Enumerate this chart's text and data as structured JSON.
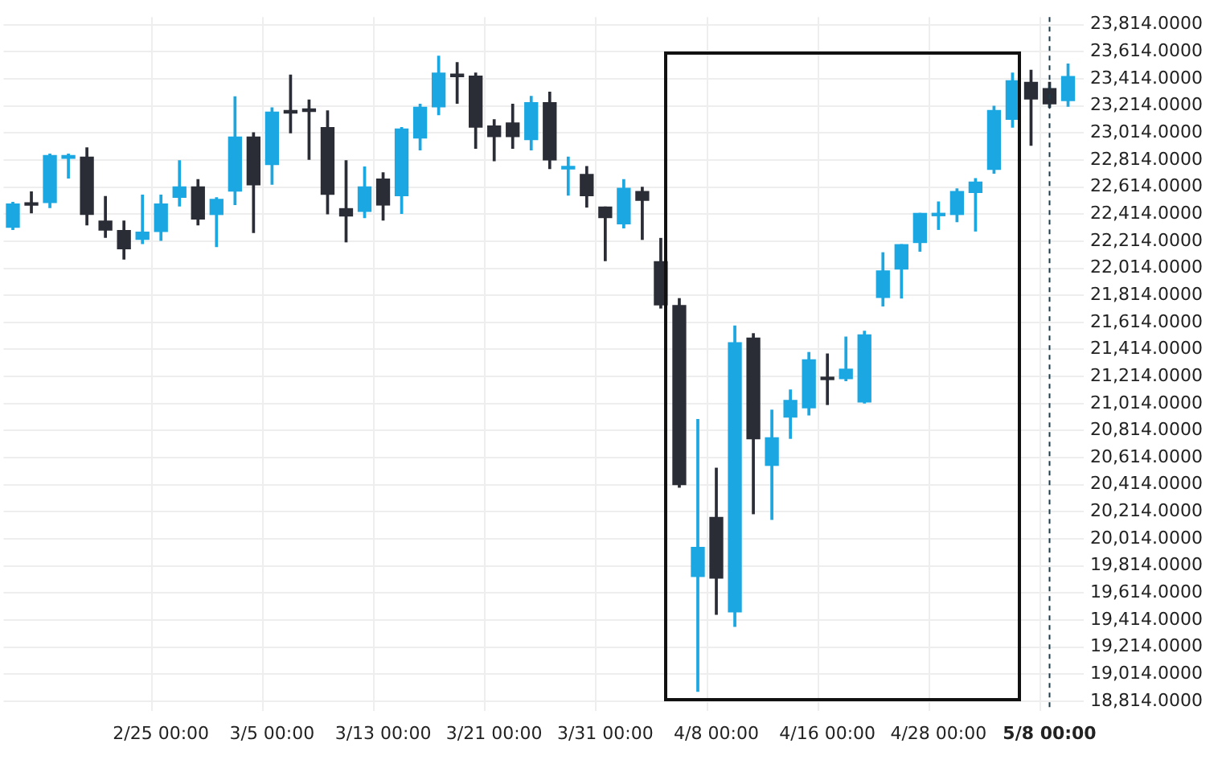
{
  "chart_data": {
    "type": "candlestick",
    "categories": [
      null,
      null,
      null,
      null,
      null,
      null,
      null,
      null,
      "2/25 00:00",
      null,
      null,
      null,
      null,
      null,
      "3/5 00:00",
      null,
      null,
      null,
      null,
      null,
      "3/13 00:00",
      null,
      null,
      null,
      null,
      null,
      "3/21 00:00",
      null,
      null,
      null,
      null,
      null,
      "3/31 00:00",
      null,
      null,
      null,
      null,
      null,
      "4/8 00:00",
      null,
      null,
      null,
      null,
      null,
      "4/16 00:00",
      null,
      null,
      null,
      null,
      null,
      "4/28 00:00",
      null,
      null,
      null,
      null,
      null,
      "5/8 00:00",
      null
    ],
    "ohlc": [
      [
        22316,
        22500,
        22300,
        22489
      ],
      [
        22489,
        22577,
        22423,
        22480
      ],
      [
        22500,
        22857,
        22462,
        22846
      ],
      [
        22826,
        22857,
        22681,
        22846
      ],
      [
        22834,
        22903,
        22335,
        22411
      ],
      [
        22362,
        22543,
        22243,
        22296
      ],
      [
        22293,
        22362,
        22082,
        22158
      ],
      [
        22227,
        22554,
        22197,
        22281
      ],
      [
        22285,
        22554,
        22220,
        22489
      ],
      [
        22538,
        22808,
        22474,
        22615
      ],
      [
        22615,
        22669,
        22335,
        22377
      ],
      [
        22411,
        22535,
        22174,
        22523
      ],
      [
        22584,
        23280,
        22485,
        22984
      ],
      [
        22984,
        23015,
        22278,
        22630
      ],
      [
        22780,
        23199,
        22635,
        23168
      ],
      [
        23168,
        23441,
        23015,
        23161
      ],
      [
        23191,
        23257,
        22819,
        23172
      ],
      [
        23053,
        23176,
        22416,
        22561
      ],
      [
        22454,
        22808,
        22209,
        22400
      ],
      [
        22434,
        22762,
        22388,
        22615
      ],
      [
        22673,
        22719,
        22370,
        22481
      ],
      [
        22550,
        23053,
        22419,
        23042
      ],
      [
        22976,
        23226,
        22888,
        23203
      ],
      [
        23206,
        23580,
        23149,
        23456
      ],
      [
        23437,
        23533,
        23234,
        23430
      ],
      [
        23433,
        23456,
        22900,
        23057
      ],
      [
        23065,
        23111,
        22808,
        22987
      ],
      [
        23088,
        23226,
        22900,
        22987
      ],
      [
        22964,
        23283,
        22888,
        23237
      ],
      [
        23237,
        23315,
        22750,
        22815
      ],
      [
        22748,
        22834,
        22554,
        22750
      ],
      [
        22707,
        22765,
        22466,
        22550
      ],
      [
        22466,
        22466,
        22070,
        22388
      ],
      [
        22342,
        22669,
        22312,
        22604
      ],
      [
        22581,
        22612,
        22227,
        22515
      ],
      [
        22062,
        22234,
        21720,
        21743
      ],
      [
        21739,
        21789,
        20396,
        20415
      ],
      [
        19736,
        20896,
        18887,
        19951
      ],
      [
        20173,
        20536,
        19456,
        19724
      ],
      [
        19474,
        21587,
        19367,
        21464
      ],
      [
        21498,
        21530,
        20200,
        20753
      ],
      [
        20557,
        20965,
        20158,
        20761
      ],
      [
        20914,
        21114,
        20757,
        21037
      ],
      [
        20983,
        21391,
        20930,
        21337
      ],
      [
        21198,
        21380,
        21007,
        21191
      ],
      [
        21198,
        21505,
        21183,
        21268
      ],
      [
        21026,
        21548,
        21018,
        21521
      ],
      [
        21798,
        22128,
        21735,
        21994
      ],
      [
        22008,
        22188,
        21794,
        22188
      ],
      [
        22204,
        22419,
        22140,
        22419
      ],
      [
        22402,
        22504,
        22301,
        22405
      ],
      [
        22411,
        22600,
        22358,
        22581
      ],
      [
        22573,
        22676,
        22289,
        22650
      ],
      [
        22745,
        23211,
        22716,
        23180
      ],
      [
        23114,
        23456,
        23057,
        23399
      ],
      [
        23387,
        23477,
        22923,
        23264
      ],
      [
        23341,
        23387,
        23203,
        23229
      ],
      [
        23252,
        23522,
        23211,
        23430
      ]
    ],
    "colors": [
      "#1ba7e1",
      "#2b2d36",
      "#1ba7e1",
      "#1ba7e1",
      "#2b2d36",
      "#2b2d36",
      "#2b2d36",
      "#1ba7e1",
      "#1ba7e1",
      "#1ba7e1",
      "#2b2d36",
      "#1ba7e1",
      "#1ba7e1",
      "#2b2d36",
      "#1ba7e1",
      "#2b2d36",
      "#2b2d36",
      "#2b2d36",
      "#2b2d36",
      "#1ba7e1",
      "#2b2d36",
      "#1ba7e1",
      "#1ba7e1",
      "#1ba7e1",
      "#2b2d36",
      "#2b2d36",
      "#2b2d36",
      "#2b2d36",
      "#1ba7e1",
      "#2b2d36",
      "#1ba7e1",
      "#2b2d36",
      "#2b2d36",
      "#1ba7e1",
      "#2b2d36",
      "#2b2d36",
      "#2b2d36",
      "#1ba7e1",
      "#2b2d36",
      "#1ba7e1",
      "#2b2d36",
      "#1ba7e1",
      "#1ba7e1",
      "#1ba7e1",
      "#2b2d36",
      "#1ba7e1",
      "#1ba7e1",
      "#1ba7e1",
      "#1ba7e1",
      "#1ba7e1",
      "#1ba7e1",
      "#1ba7e1",
      "#1ba7e1",
      "#1ba7e1",
      "#1ba7e1",
      "#2b2d36",
      "#2b2d36",
      "#1ba7e1"
    ],
    "ylim": [
      18745,
      23870
    ],
    "yticks": [
      {
        "value": 18814,
        "label": "18,814.0000"
      },
      {
        "value": 19014,
        "label": "19,014.0000"
      },
      {
        "value": 19214,
        "label": "19,214.0000"
      },
      {
        "value": 19414,
        "label": "19,414.0000"
      },
      {
        "value": 19614,
        "label": "19,614.0000"
      },
      {
        "value": 19814,
        "label": "19,814.0000"
      },
      {
        "value": 20014,
        "label": "20,014.0000"
      },
      {
        "value": 20214,
        "label": "20,214.0000"
      },
      {
        "value": 20414,
        "label": "20,414.0000"
      },
      {
        "value": 20614,
        "label": "20,614.0000"
      },
      {
        "value": 20814,
        "label": "20,814.0000"
      },
      {
        "value": 21014,
        "label": "21,014.0000"
      },
      {
        "value": 21214,
        "label": "21,214.0000"
      },
      {
        "value": 21414,
        "label": "21,414.0000"
      },
      {
        "value": 21614,
        "label": "21,614.0000"
      },
      {
        "value": 21814,
        "label": "21,814.0000"
      },
      {
        "value": 22014,
        "label": "22,014.0000"
      },
      {
        "value": 22214,
        "label": "22,214.0000"
      },
      {
        "value": 22414,
        "label": "22,414.0000"
      },
      {
        "value": 22614,
        "label": "22,614.0000"
      },
      {
        "value": 22814,
        "label": "22,814.0000"
      },
      {
        "value": 23014,
        "label": "23,014.0000"
      },
      {
        "value": 23214,
        "label": "23,214.0000"
      },
      {
        "value": 23414,
        "label": "23,414.0000"
      },
      {
        "value": 23614,
        "label": "23,614.0000"
      },
      {
        "value": 23814,
        "label": "23,814.0000"
      }
    ],
    "grid": true,
    "ref_lines": [
      {
        "axis": "x",
        "value": "5/8 00:00",
        "color": "#1a3a4a",
        "line_style": "dashed"
      }
    ]
  }
}
